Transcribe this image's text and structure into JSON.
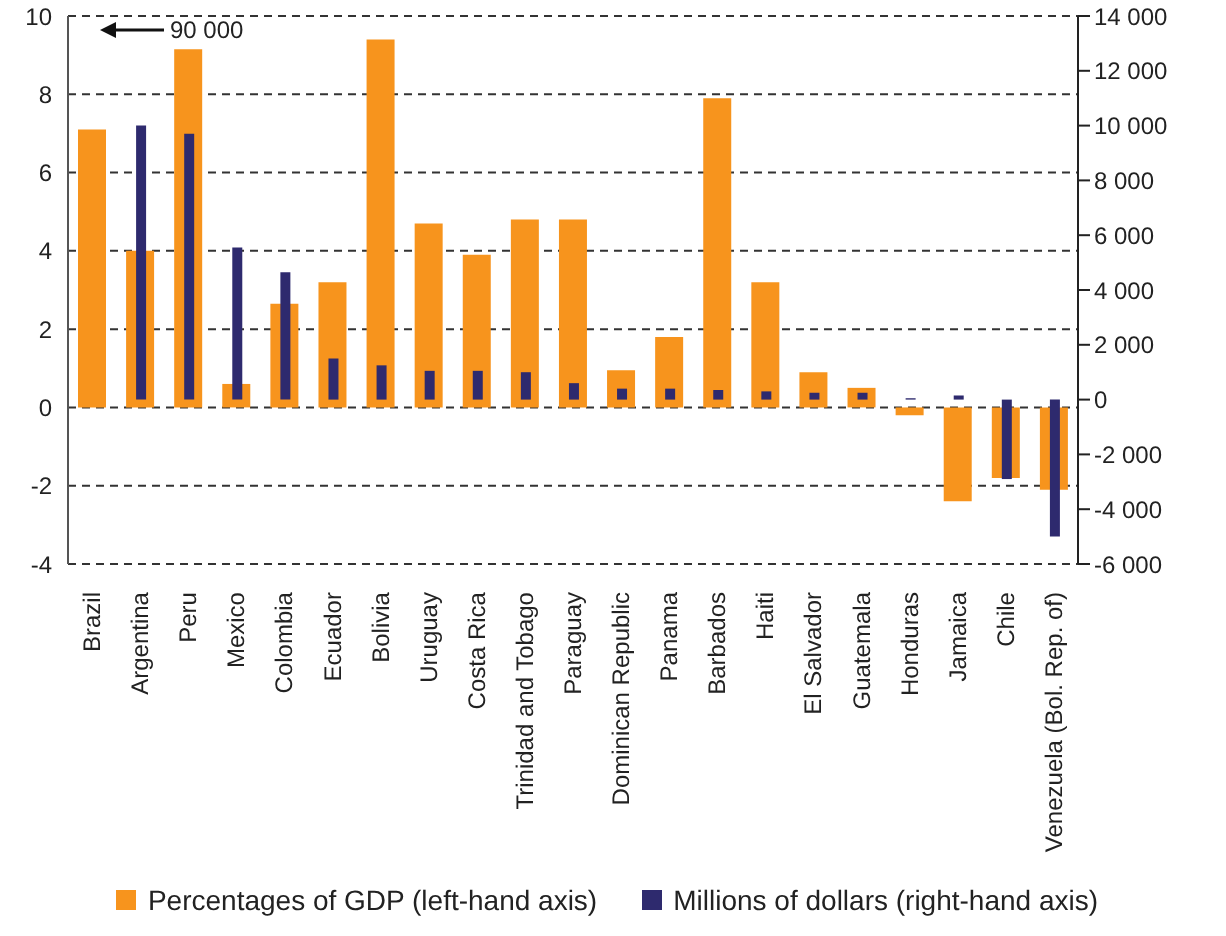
{
  "chart_data": {
    "type": "bar",
    "categories": [
      "Brazil",
      "Argentina",
      "Peru",
      "Mexico",
      "Colombia",
      "Ecuador",
      "Bolivia",
      "Uruguay",
      "Costa Rica",
      "Trinidad and Tobago",
      "Paraguay",
      "Dominican Republic",
      "Panama",
      "Barbados",
      "Haiti",
      "El Salvador",
      "Guatemala",
      "Honduras",
      "Jamaica",
      "Chile",
      "Venezuela (Bol. Rep. of)"
    ],
    "series": [
      {
        "name": "Percentages of GDP (left-hand axis)",
        "color": "#f7941d",
        "values": [
          7.1,
          4.0,
          9.15,
          0.6,
          2.65,
          3.2,
          9.4,
          4.7,
          3.9,
          4.8,
          4.8,
          0.95,
          1.8,
          7.9,
          3.2,
          0.9,
          0.5,
          -0.2,
          -2.4,
          -1.8,
          -2.1
        ]
      },
      {
        "name": "Millions of dollars (right-hand axis)",
        "color": "#2e2a6e",
        "axis": "y2",
        "values": [
          null,
          10000,
          9700,
          5550,
          4650,
          1500,
          1250,
          1050,
          1050,
          1000,
          600,
          400,
          400,
          350,
          300,
          250,
          250,
          50,
          150,
          -2900,
          -5000
        ]
      }
    ],
    "ylim": [
      -4,
      10
    ],
    "yticks": [
      -4,
      -2,
      0,
      2,
      4,
      6,
      8,
      10
    ],
    "y2lim": [
      -6000,
      14000
    ],
    "y2ticks": [
      {
        "value": -6000,
        "label": "-6 000"
      },
      {
        "value": -4000,
        "label": "-4 000"
      },
      {
        "value": -2000,
        "label": "-2 000"
      },
      0,
      {
        "value": 2000,
        "label": "2 000"
      },
      {
        "value": 4000,
        "label": "4 000"
      },
      {
        "value": 6000,
        "label": "6 000"
      },
      {
        "value": 8000,
        "label": "8 000"
      },
      {
        "value": 10000,
        "label": "10 000"
      },
      {
        "value": 12000,
        "label": "12 000"
      },
      {
        "value": 14000,
        "label": "14 000"
      }
    ],
    "grid": "y",
    "legend": "bottom",
    "annotations": [
      "90 000"
    ]
  }
}
